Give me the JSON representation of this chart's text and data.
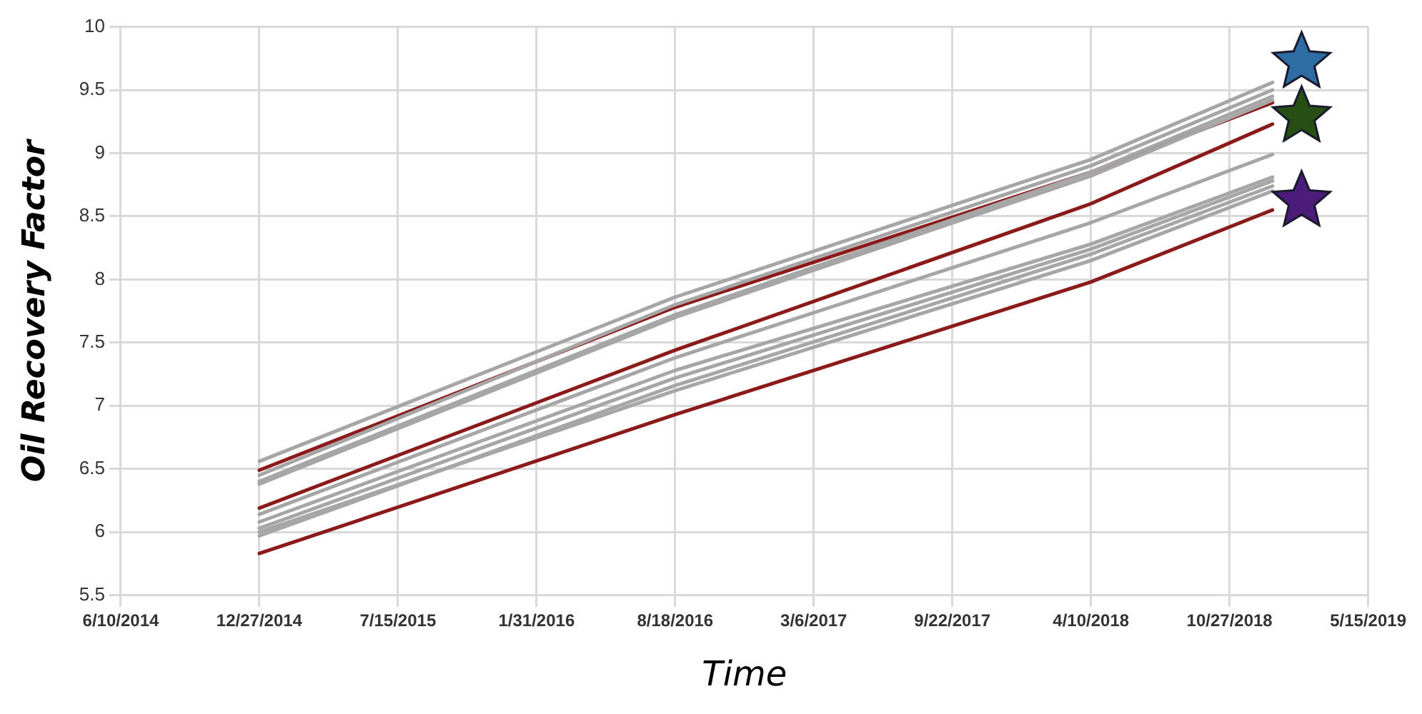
{
  "chart_data": {
    "type": "line",
    "xlabel": "Time",
    "ylabel": "Oil Recovery Factor",
    "x": [
      "2014-12-27",
      "2016-08-18",
      "2018-04-10",
      "2018-12-28"
    ],
    "xlim": [
      "2014-06-10",
      "2019-05-15"
    ],
    "xticks": [
      {
        "value": "2014-06-10",
        "label": "6/10/2014"
      },
      {
        "value": "2014-12-27",
        "label": "12/27/2014"
      },
      {
        "value": "2015-07-15",
        "label": "7/15/2015"
      },
      {
        "value": "2016-01-31",
        "label": "1/31/2016"
      },
      {
        "value": "2016-08-18",
        "label": "8/18/2016"
      },
      {
        "value": "2017-03-06",
        "label": "3/6/2017"
      },
      {
        "value": "2017-09-22",
        "label": "9/22/2017"
      },
      {
        "value": "2018-04-10",
        "label": "4/10/2018"
      },
      {
        "value": "2018-10-27",
        "label": "10/27/2018"
      },
      {
        "value": "2019-05-15",
        "label": "5/15/2019"
      }
    ],
    "ylim": [
      5.5,
      10
    ],
    "yticks": [
      5.5,
      6,
      6.5,
      7,
      7.5,
      8,
      8.5,
      9,
      9.5,
      10
    ],
    "grid": true,
    "legend": false,
    "marker": "none",
    "line_style": "solid",
    "series": [
      {
        "color": "#a6a6a6",
        "values": [
          6.56,
          7.86,
          8.95,
          9.56
        ]
      },
      {
        "color": "#a6a6a6",
        "values": [
          6.45,
          7.8,
          8.9,
          9.5
        ]
      },
      {
        "color": "#a6a6a6",
        "values": [
          6.38,
          7.7,
          8.82,
          9.42
        ]
      },
      {
        "color": "#a6a6a6",
        "values": [
          6.4,
          7.72,
          8.85,
          9.45
        ]
      },
      {
        "color": "#a6a6a6",
        "values": [
          6.14,
          7.38,
          8.45,
          8.99
        ]
      },
      {
        "color": "#a6a6a6",
        "values": [
          6.08,
          7.28,
          8.28,
          8.81
        ]
      },
      {
        "color": "#a6a6a6",
        "values": [
          6.03,
          7.22,
          8.24,
          8.78
        ]
      },
      {
        "color": "#a6a6a6",
        "values": [
          5.97,
          7.16,
          8.2,
          8.74
        ]
      },
      {
        "color": "#a6a6a6",
        "values": [
          6,
          7.12,
          8.15,
          8.7
        ]
      },
      {
        "color": "#8b1a1a",
        "values": [
          6.49,
          7.78,
          8.85,
          9.4
        ]
      },
      {
        "color": "#8b1a1a",
        "values": [
          6.19,
          7.44,
          8.6,
          9.23
        ]
      },
      {
        "color": "#8b1a1a",
        "values": [
          5.83,
          6.93,
          7.98,
          8.55
        ]
      },
      {
        "type": "scatter",
        "marker": "star",
        "x": [
          "2019-02-08",
          "2019-02-08",
          "2019-02-08"
        ],
        "values": [
          9.72,
          9.29,
          8.62
        ],
        "colors": [
          "#2e6da4",
          "#274e13",
          "#4b1c7a"
        ]
      }
    ]
  }
}
